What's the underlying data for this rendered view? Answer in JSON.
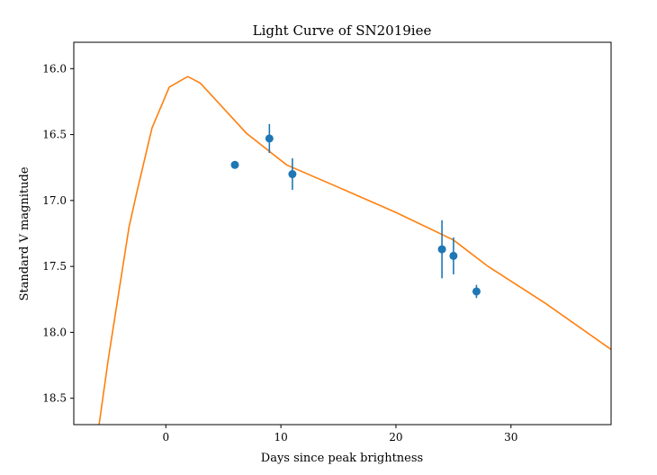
{
  "chart_data": {
    "type": "scatter",
    "title": "Light Curve of SN2019iee",
    "xlabel": "Days since peak brightness",
    "ylabel": "Standard V magnitude",
    "xlim": [
      -8,
      38.7
    ],
    "ylim": [
      18.7,
      15.8
    ],
    "y_inverted": true,
    "grid": false,
    "legend": "none",
    "x_ticks": [
      0,
      10,
      20,
      30
    ],
    "y_ticks": [
      16.0,
      16.5,
      17.0,
      17.5,
      18.0,
      18.5
    ],
    "x_tick_labels": [
      "0",
      "10",
      "20",
      "30"
    ],
    "y_tick_labels": [
      "16.0",
      "16.5",
      "17.0",
      "17.5",
      "18.0",
      "18.5"
    ],
    "observations": {
      "color": "#1f77b4",
      "points": [
        {
          "x": 6,
          "y": 16.73,
          "err": 0.0
        },
        {
          "x": 9,
          "y": 16.53,
          "err": 0.11
        },
        {
          "x": 11,
          "y": 16.8,
          "err": 0.12
        },
        {
          "x": 24,
          "y": 17.37,
          "err": 0.22
        },
        {
          "x": 25,
          "y": 17.42,
          "err": 0.14
        },
        {
          "x": 27,
          "y": 17.69,
          "err": 0.05
        }
      ]
    },
    "model": {
      "color": "#ff7f0e",
      "x": [
        -5.8,
        -5.0,
        -3.2,
        -2.5,
        -1.2,
        0.3,
        1.9,
        3.0,
        7.0,
        10.5,
        15.0,
        20.0,
        25.0,
        28.0,
        33.0,
        38.7
      ],
      "y": [
        18.7,
        18.2,
        17.2,
        16.93,
        16.45,
        16.14,
        16.06,
        16.11,
        16.49,
        16.73,
        16.9,
        17.09,
        17.3,
        17.5,
        17.78,
        18.13
      ]
    }
  }
}
